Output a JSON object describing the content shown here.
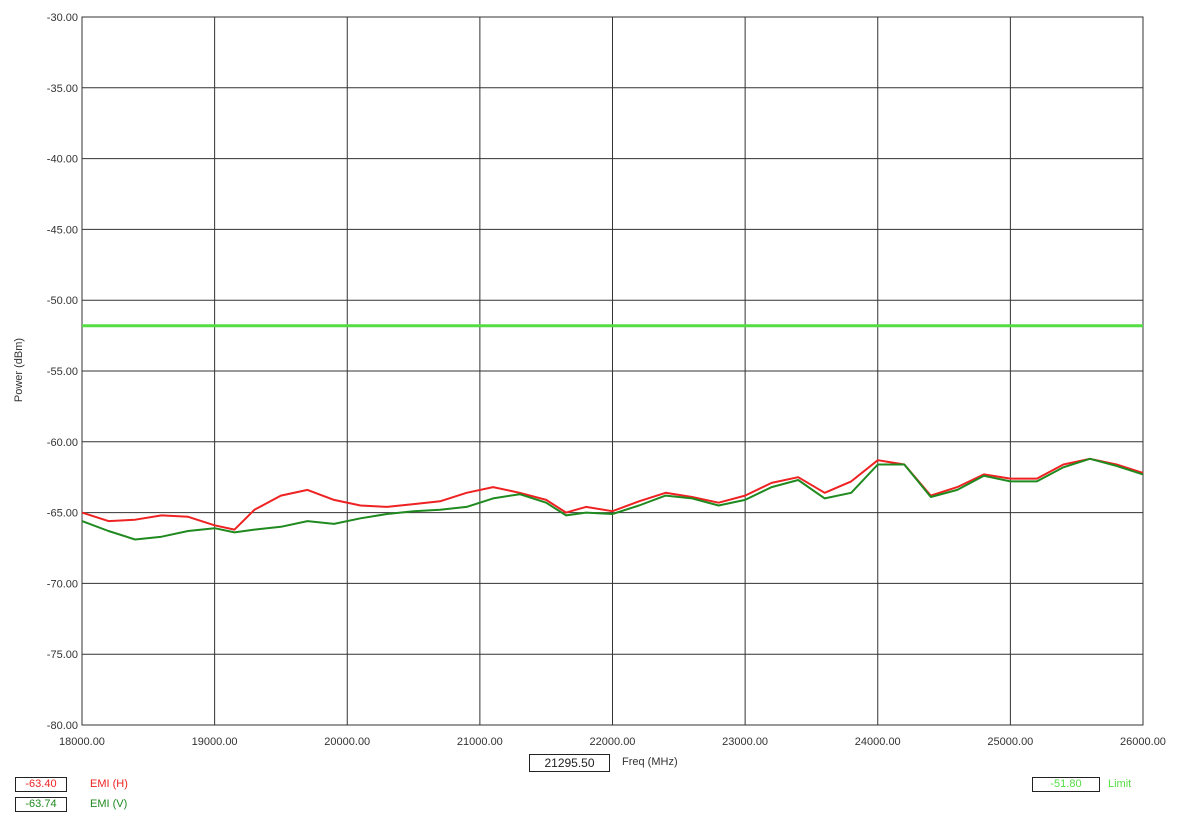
{
  "chart_data": {
    "type": "line",
    "xlabel": "Freq (MHz)",
    "ylabel": "Power (dBm)",
    "xlim": [
      18000,
      26000
    ],
    "ylim": [
      -80,
      -30
    ],
    "x_ticks": [
      "18000.00",
      "19000.00",
      "20000.00",
      "21000.00",
      "22000.00",
      "23000.00",
      "24000.00",
      "25000.00",
      "26000.00"
    ],
    "y_ticks": [
      "-30.00",
      "-35.00",
      "-40.00",
      "-45.00",
      "-50.00",
      "-55.00",
      "-60.00",
      "-65.00",
      "-70.00",
      "-75.00",
      "-80.00"
    ],
    "grid": true,
    "series": [
      {
        "name": "EMI (H)",
        "color": "#ee2222",
        "x": [
          18000,
          18200,
          18400,
          18600,
          18800,
          19000,
          19150,
          19300,
          19500,
          19700,
          19900,
          20100,
          20300,
          20500,
          20700,
          20900,
          21100,
          21300,
          21500,
          21650,
          21800,
          22000,
          22200,
          22400,
          22600,
          22800,
          23000,
          23200,
          23400,
          23600,
          23800,
          24000,
          24200,
          24400,
          24600,
          24800,
          25000,
          25200,
          25400,
          25600,
          25800,
          26000
        ],
        "values": [
          -65.0,
          -65.6,
          -65.5,
          -65.2,
          -65.3,
          -65.9,
          -66.2,
          -64.8,
          -63.8,
          -63.4,
          -64.1,
          -64.5,
          -64.6,
          -64.4,
          -64.2,
          -63.6,
          -63.2,
          -63.6,
          -64.1,
          -65.0,
          -64.6,
          -64.9,
          -64.2,
          -63.6,
          -63.9,
          -64.3,
          -63.8,
          -62.9,
          -62.5,
          -63.6,
          -62.8,
          -61.3,
          -61.6,
          -63.8,
          -63.2,
          -62.3,
          -62.6,
          -62.6,
          -61.6,
          -61.2,
          -61.6,
          -62.2
        ]
      },
      {
        "name": "EMI (V)",
        "color": "#1f8a1f",
        "x": [
          18000,
          18200,
          18400,
          18600,
          18800,
          19000,
          19150,
          19300,
          19500,
          19700,
          19900,
          20100,
          20300,
          20500,
          20700,
          20900,
          21100,
          21300,
          21500,
          21650,
          21800,
          22000,
          22200,
          22400,
          22600,
          22800,
          23000,
          23200,
          23400,
          23600,
          23800,
          24000,
          24200,
          24400,
          24600,
          24800,
          25000,
          25200,
          25400,
          25600,
          25800,
          26000
        ],
        "values": [
          -65.6,
          -66.3,
          -66.9,
          -66.7,
          -66.3,
          -66.1,
          -66.4,
          -66.2,
          -66.0,
          -65.6,
          -65.8,
          -65.4,
          -65.1,
          -64.9,
          -64.8,
          -64.6,
          -64.0,
          -63.7,
          -64.3,
          -65.2,
          -65.0,
          -65.1,
          -64.5,
          -63.8,
          -64.0,
          -64.5,
          -64.1,
          -63.2,
          -62.7,
          -64.0,
          -63.6,
          -61.6,
          -61.6,
          -63.9,
          -63.4,
          -62.4,
          -62.8,
          -62.8,
          -61.8,
          -61.2,
          -61.7,
          -62.3
        ]
      },
      {
        "name": "Limit",
        "color": "#55dd44",
        "x": [
          18000,
          26000
        ],
        "values": [
          -51.8,
          -51.8
        ]
      }
    ]
  },
  "marker": {
    "freq": "21295.50"
  },
  "readouts": {
    "h_value": "-63.40",
    "h_label": "EMI (H)",
    "v_value": "-63.74",
    "v_label": "EMI (V)",
    "limit_value": "-51.80",
    "limit_label": "Limit"
  },
  "colors": {
    "h": "#ee2222",
    "v": "#1f8a1f",
    "limit": "#55dd44",
    "grid": "#333333"
  }
}
